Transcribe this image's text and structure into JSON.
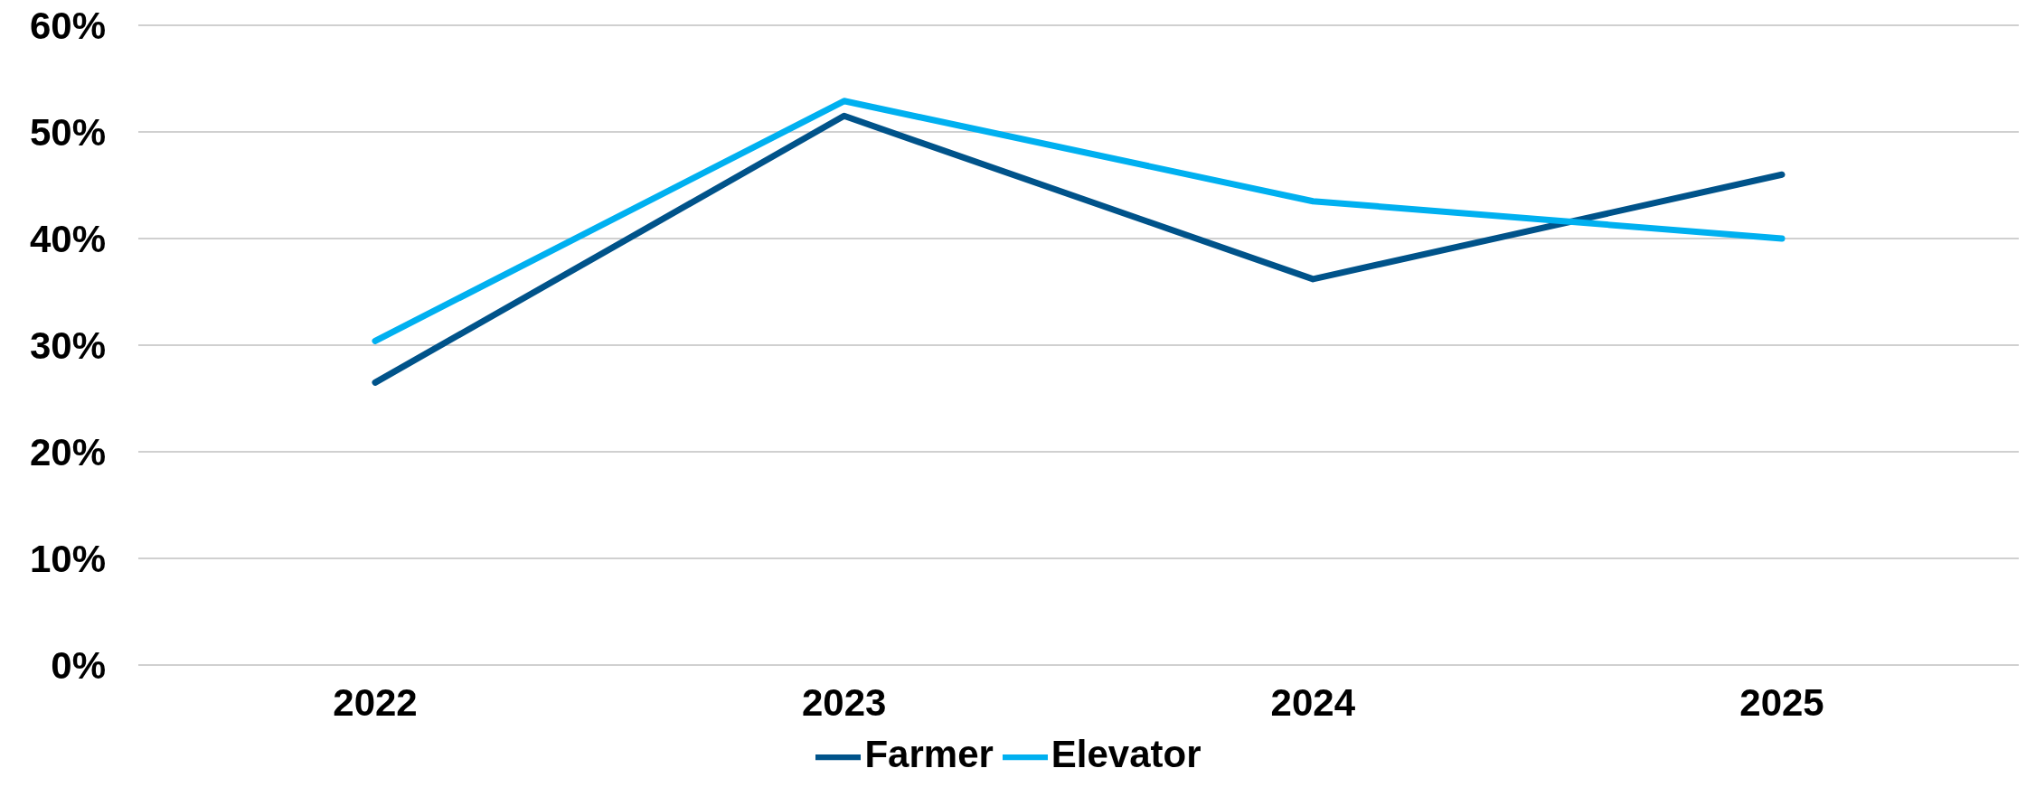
{
  "chart_data": {
    "type": "line",
    "categories": [
      "2022",
      "2023",
      "2024",
      "2025"
    ],
    "series": [
      {
        "name": "Farmer",
        "color": "#00538a",
        "values": [
          26.5,
          51.5,
          36.2,
          46.0
        ]
      },
      {
        "name": "Elevator",
        "color": "#00b0f0",
        "values": [
          30.4,
          52.9,
          43.5,
          40.0
        ]
      }
    ],
    "ylim": [
      0,
      60
    ],
    "yticks": [
      {
        "value": 0,
        "label": "0%"
      },
      {
        "value": 10,
        "label": "10%"
      },
      {
        "value": 20,
        "label": "20%"
      },
      {
        "value": 30,
        "label": "30%"
      },
      {
        "value": 40,
        "label": "40%"
      },
      {
        "value": 50,
        "label": "50%"
      },
      {
        "value": 60,
        "label": "60%"
      }
    ],
    "grid": "y",
    "legend": "bottom",
    "marker": "none",
    "line_style": "solid"
  }
}
